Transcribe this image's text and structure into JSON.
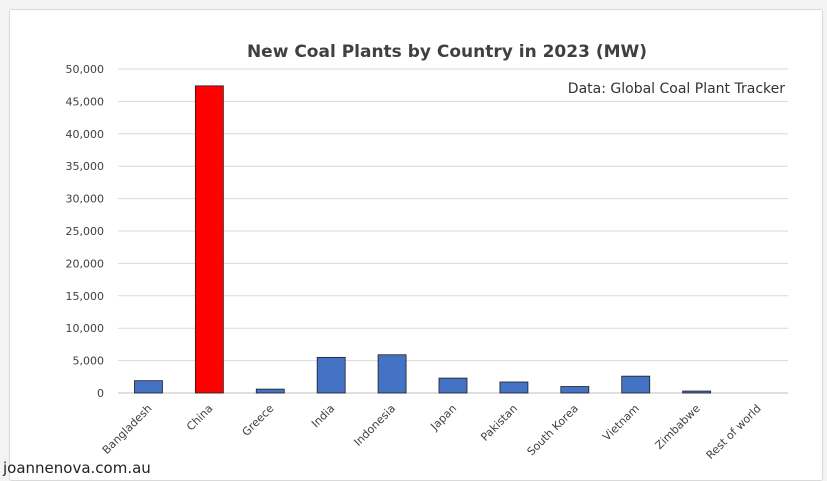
{
  "chart_data": {
    "type": "bar",
    "title": "New Coal Plants by Country in 2023 (MW)",
    "annotation": "Data: Global Coal Plant Tracker",
    "categories": [
      "Bangladesh",
      "China",
      "Greece",
      "India",
      "Indonesia",
      "Japan",
      "Pakistan",
      "South Korea",
      "Vietnam",
      "Zimbabwe",
      "Rest of world"
    ],
    "values": [
      1900,
      47400,
      600,
      5500,
      5900,
      2300,
      1700,
      1000,
      2600,
      300,
      0
    ],
    "ylim": [
      0,
      50000
    ],
    "yticks": [
      0,
      5000,
      10000,
      15000,
      20000,
      25000,
      30000,
      35000,
      40000,
      45000,
      50000
    ],
    "ytick_labels": [
      "0",
      "5,000",
      "10,000",
      "15,000",
      "20,000",
      "25,000",
      "30,000",
      "35,000",
      "40,000",
      "45,000",
      "50,000"
    ],
    "xlabel": "",
    "ylabel": "",
    "grid": true,
    "legend": "none",
    "colors": {
      "default_bar": "#4472c4",
      "highlight_bar": "#ff0000",
      "highlight_category": "China",
      "gridline": "#d9d9d9",
      "text": "#404040"
    }
  },
  "watermark": "joannenova.com.au"
}
